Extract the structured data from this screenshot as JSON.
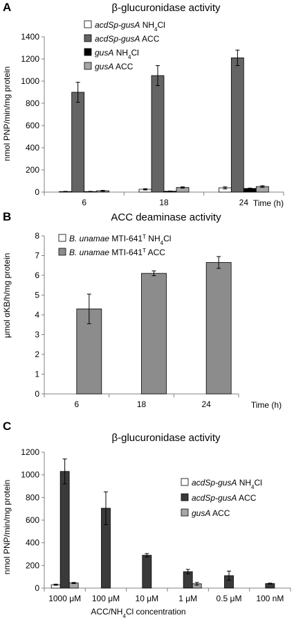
{
  "colors": {
    "white_fill": "#ffffff",
    "dark_gray": "#646464",
    "black": "#000000",
    "light_gray": "#a6a6a6",
    "mid_gray": "#8c8c8c",
    "darker_gray": "#3a3a3a",
    "axis": "#808080"
  },
  "chart_data": [
    {
      "panel": "A",
      "type": "bar",
      "title": "β-glucuronidase activity",
      "ylabel": "nmol PNP/min/mg protein",
      "xlabel": "Time (h)",
      "categories": [
        "6",
        "18",
        "24"
      ],
      "ylim": [
        0,
        1400
      ],
      "yticks": [
        0,
        200,
        400,
        600,
        800,
        1000,
        1200,
        1400
      ],
      "legend_position": "top-left",
      "series": [
        {
          "name": "acdSp-gusA NH4Cl",
          "name_italic": "acdSp-gusA",
          "name_rest": " NH",
          "name_sub": "4",
          "name_tail": "Cl",
          "color": "#ffffff",
          "values": [
            5,
            25,
            38
          ],
          "errors": [
            2,
            6,
            9
          ]
        },
        {
          "name": "acdSp-gusA ACC",
          "name_italic": "acdSp-gusA",
          "name_rest": " ACC",
          "name_sub": "",
          "name_tail": "",
          "color": "#646464",
          "values": [
            900,
            1050,
            1210
          ],
          "errors": [
            90,
            90,
            70
          ]
        },
        {
          "name": "gusA NH4Cl",
          "name_italic": "gusA",
          "name_rest": " NH",
          "name_sub": "4",
          "name_tail": "Cl",
          "color": "#000000",
          "values": [
            5,
            8,
            33
          ],
          "errors": [
            2,
            2,
            3
          ]
        },
        {
          "name": "gusA ACC",
          "name_italic": "gusA",
          "name_rest": " ACC",
          "name_sub": "",
          "name_tail": "",
          "color": "#a6a6a6",
          "values": [
            12,
            42,
            50
          ],
          "errors": [
            4,
            6,
            7
          ]
        }
      ]
    },
    {
      "panel": "B",
      "type": "bar",
      "title": "ACC deaminase activity",
      "ylabel": "μmol αKB/h/mg protein",
      "xlabel": "Time (h)",
      "categories": [
        "6",
        "18",
        "24"
      ],
      "ylim": [
        0,
        8
      ],
      "yticks": [
        0,
        1,
        2,
        3,
        4,
        5,
        6,
        7,
        8
      ],
      "legend_position": "top-left",
      "series": [
        {
          "name": "B. unamae MTI-641T NH4Cl",
          "name_italic": "B. unamae",
          "name_rest": " MTI-641",
          "name_sup": "T",
          "name_tail": " NH",
          "name_sub": "4",
          "name_end": "Cl",
          "color": "#ffffff",
          "values": [
            0,
            0,
            0
          ],
          "errors": [
            0,
            0,
            0
          ]
        },
        {
          "name": "B. unamae MTI-641T ACC",
          "name_italic": "B. unamae",
          "name_rest": " MTI-641",
          "name_sup": "T",
          "name_tail": " ACC",
          "name_sub": "",
          "name_end": "",
          "color": "#8c8c8c",
          "values": [
            4.3,
            6.1,
            6.65
          ],
          "errors": [
            0.75,
            0.12,
            0.3
          ]
        }
      ]
    },
    {
      "panel": "C",
      "type": "bar",
      "title": "β-glucuronidase activity",
      "ylabel": "nmol PNP/min/mg protein",
      "xlabel": "ACC/NH4Cl concentration",
      "xlabel_parts": [
        "ACC/NH",
        "4",
        "Cl concentration"
      ],
      "categories": [
        "1000 μM",
        "100 μM",
        "10 μM",
        "1 μM",
        "0.5 μM",
        "100 nM"
      ],
      "ylim": [
        0,
        1200
      ],
      "yticks": [
        0,
        200,
        400,
        600,
        800,
        1000,
        1200
      ],
      "legend_position": "right",
      "series": [
        {
          "name": "acdSp-gusA NH4Cl",
          "name_italic": "acdSp-gusA",
          "name_rest": " NH",
          "name_sub": "4",
          "name_tail": "Cl",
          "color": "#ffffff",
          "values": [
            30,
            0,
            0,
            0,
            0,
            0
          ],
          "errors": [
            5,
            0,
            0,
            0,
            0,
            0
          ]
        },
        {
          "name": "acdSp-gusA ACC",
          "name_italic": "acdSp-gusA",
          "name_rest": " ACC",
          "name_sub": "",
          "name_tail": "",
          "color": "#3a3a3a",
          "values": [
            1030,
            705,
            290,
            145,
            110,
            40
          ],
          "errors": [
            110,
            145,
            15,
            20,
            40,
            4
          ]
        },
        {
          "name": "gusA ACC",
          "name_italic": "gusA",
          "name_rest": " ACC",
          "name_sub": "",
          "name_tail": "",
          "color": "#a6a6a6",
          "values": [
            45,
            0,
            0,
            38,
            0,
            0
          ],
          "errors": [
            5,
            0,
            0,
            12,
            0,
            0
          ]
        }
      ]
    }
  ]
}
